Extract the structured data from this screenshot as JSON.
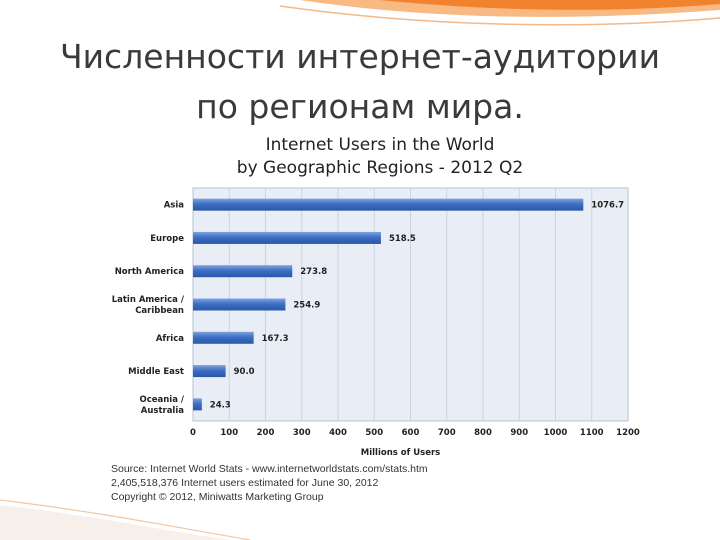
{
  "slide": {
    "title_line1": "Численности интернет-аудитории",
    "title_line2": "по регионам мира."
  },
  "colors": {
    "bar": "#3d6fc4",
    "bar_dark": "#2a56a8",
    "plot_bg": "#e9eef6",
    "grid": "#c9d3e2",
    "accent_orange": "#f07820"
  },
  "chart_data": {
    "type": "bar",
    "orientation": "horizontal",
    "title": "Internet Users in the World",
    "subtitle": "by Geographic Regions - 2012 Q2",
    "xlabel": "Millions of Users",
    "ylabel": "",
    "categories": [
      "Asia",
      "Europe",
      "North America",
      "Latin America / Caribbean",
      "Africa",
      "Middle East",
      "Oceania / Australia"
    ],
    "category_lines": [
      [
        "Asia"
      ],
      [
        "Europe"
      ],
      [
        "North America"
      ],
      [
        "Latin America /",
        "Caribbean"
      ],
      [
        "Africa"
      ],
      [
        "Middle East"
      ],
      [
        "Oceania  /",
        "Australia"
      ]
    ],
    "values": [
      1076.7,
      518.5,
      273.8,
      254.9,
      167.3,
      90.0,
      24.3
    ],
    "value_labels": [
      "1076.7",
      "518.5",
      "273.8",
      "254.9",
      "167.3",
      "90.0",
      "24.3"
    ],
    "xlim": [
      0,
      1200
    ],
    "xticks": [
      0,
      100,
      200,
      300,
      400,
      500,
      600,
      700,
      800,
      900,
      1000,
      1100,
      1200
    ],
    "grid": true,
    "legend": "none"
  },
  "notes": [
    "Source: Internet World Stats - www.internetworldstats.com/stats.htm",
    "2,405,518,376 Internet users estimated for June 30, 2012",
    "Copyright © 2012, Miniwatts Marketing Group"
  ]
}
